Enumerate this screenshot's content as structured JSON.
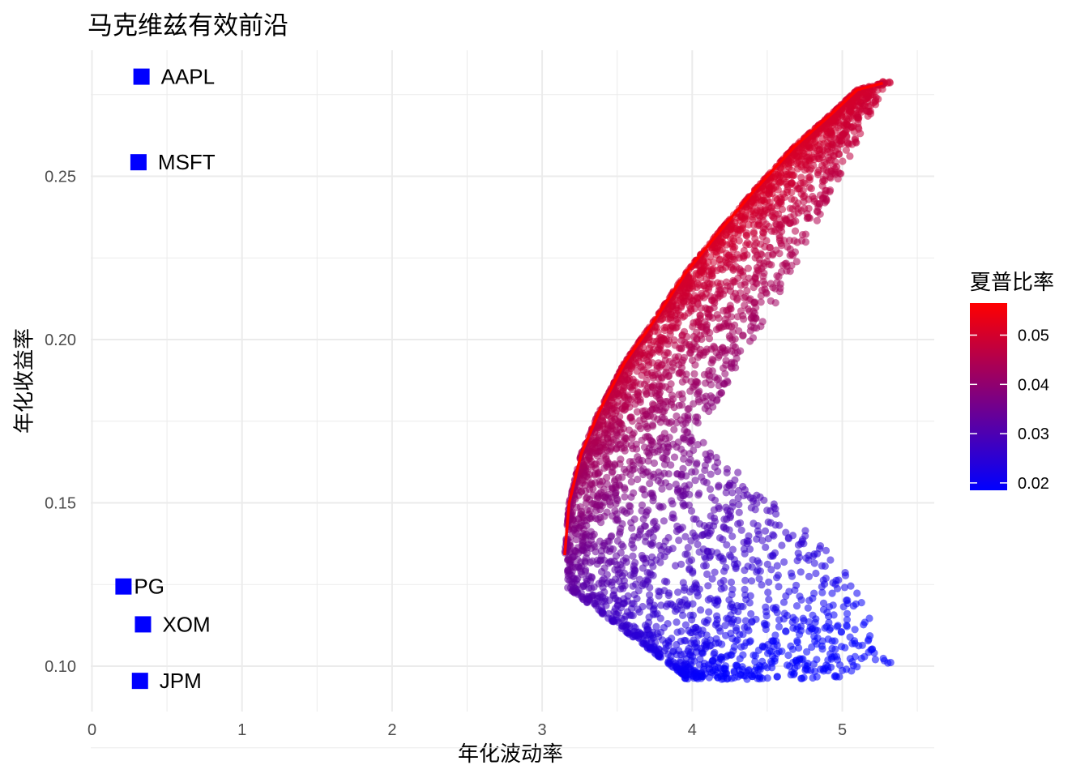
{
  "chart_data": {
    "type": "scatter",
    "title": "马克维兹有效前沿",
    "xlabel": "年化波动率",
    "ylabel": "年化收益率",
    "xlim": [
      0,
      5.55
    ],
    "ylim": [
      0.088,
      0.285
    ],
    "x_ticks": [
      "0",
      "1",
      "2",
      "3",
      "4",
      "5"
    ],
    "y_ticks": [
      "0.10",
      "0.15",
      "0.20",
      "0.25"
    ],
    "grid": true,
    "assets": [
      {
        "name": "AAPL",
        "x": 0.33,
        "y": 0.2805
      },
      {
        "name": "MSFT",
        "x": 0.31,
        "y": 0.2543
      },
      {
        "name": "PG",
        "x": 0.21,
        "y": 0.1244
      },
      {
        "name": "XOM",
        "x": 0.34,
        "y": 0.1128
      },
      {
        "name": "JPM",
        "x": 0.32,
        "y": 0.0955
      }
    ],
    "asset_color": "#0000ff",
    "portfolio_cloud": {
      "count": 6000,
      "vol_range": [
        3.15,
        5.35
      ],
      "return_range": [
        0.096,
        0.2795
      ],
      "point_alpha": 0.55
    },
    "frontier_line": {
      "color": "#ff0000",
      "points": [
        [
          3.15,
          0.134
        ],
        [
          3.18,
          0.15
        ],
        [
          3.26,
          0.165
        ],
        [
          3.38,
          0.178
        ],
        [
          3.55,
          0.193
        ],
        [
          3.75,
          0.206
        ],
        [
          3.95,
          0.22
        ],
        [
          4.18,
          0.233
        ],
        [
          4.42,
          0.246
        ],
        [
          4.68,
          0.259
        ],
        [
          4.95,
          0.27
        ],
        [
          5.1,
          0.2765
        ],
        [
          5.27,
          0.2785
        ]
      ]
    },
    "legend": {
      "title": "夏普比率",
      "type": "colorbar",
      "position": "right",
      "ticks": [
        "0.02",
        "0.03",
        "0.04",
        "0.05"
      ],
      "range": [
        0.0185,
        0.0565
      ],
      "low_color": "#0000ff",
      "high_color": "#ff0000"
    }
  }
}
